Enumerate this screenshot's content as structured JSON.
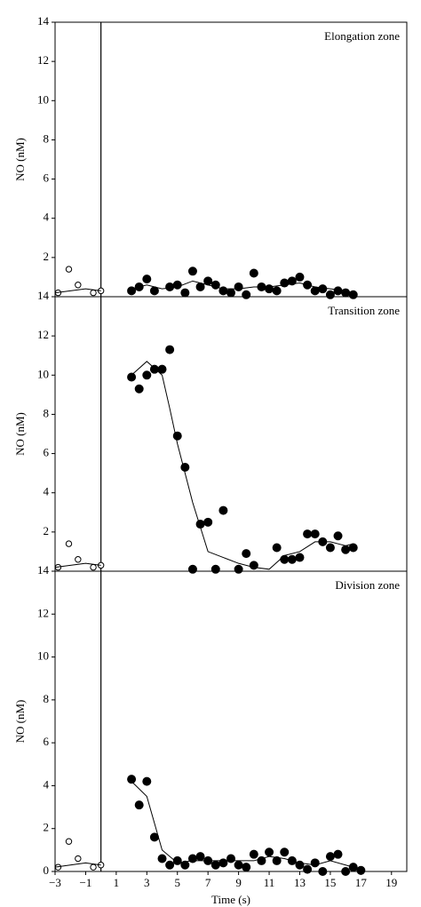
{
  "chart_data": [
    {
      "type": "scatter",
      "title": "Elongation zone",
      "ylabel": "NO (nM)",
      "xlim": [
        -3,
        20
      ],
      "ylim": [
        0,
        14
      ],
      "yticks": [
        2,
        4,
        6,
        8,
        10,
        12,
        14
      ],
      "vlines": [
        0
      ],
      "series": [
        {
          "style": "open",
          "color": "#000000",
          "x": [
            -2.8,
            -2.1,
            -1.5,
            -0.5,
            0
          ],
          "values": [
            0.2,
            1.4,
            0.6,
            0.2,
            0.3
          ]
        },
        {
          "style": "filled",
          "color": "#000000",
          "x": [
            2,
            2.5,
            3,
            3.5,
            4.5,
            5,
            5.5,
            6,
            6.5,
            7,
            7.5,
            8,
            8.5,
            9,
            9.5,
            10,
            10.5,
            11,
            11.5,
            12,
            12.5,
            13,
            13.5,
            14,
            14.5,
            15,
            15.5,
            16,
            16.5
          ],
          "values": [
            0.3,
            0.5,
            0.9,
            0.3,
            0.5,
            0.6,
            0.2,
            1.3,
            0.5,
            0.8,
            0.6,
            0.3,
            0.2,
            0.5,
            0.1,
            1.2,
            0.5,
            0.4,
            0.3,
            0.7,
            0.8,
            1.0,
            0.6,
            0.3,
            0.4,
            0.1,
            0.3,
            0.2,
            0.1
          ]
        },
        {
          "style": "line",
          "color": "#000000",
          "x": [
            -3,
            -2,
            -1,
            0
          ],
          "values": [
            0.2,
            0.3,
            0.4,
            0.3
          ]
        },
        {
          "style": "line",
          "color": "#000000",
          "x": [
            2,
            3,
            4,
            5,
            6,
            7,
            8,
            9,
            10,
            11,
            12,
            13,
            14,
            15,
            16,
            16.5
          ],
          "values": [
            0.4,
            0.6,
            0.4,
            0.5,
            0.8,
            0.6,
            0.4,
            0.4,
            0.5,
            0.5,
            0.6,
            0.7,
            0.5,
            0.4,
            0.3,
            0.2
          ]
        }
      ]
    },
    {
      "type": "scatter",
      "title": "Transition zone",
      "ylabel": "NO (nM)",
      "xlim": [
        -3,
        20
      ],
      "ylim": [
        0,
        14
      ],
      "yticks": [
        2,
        4,
        6,
        8,
        10,
        12,
        14
      ],
      "vlines": [
        0
      ],
      "series": [
        {
          "style": "open",
          "color": "#000000",
          "x": [
            -2.8,
            -2.1,
            -1.5,
            -0.5,
            0
          ],
          "values": [
            0.2,
            1.4,
            0.6,
            0.2,
            0.3
          ]
        },
        {
          "style": "filled",
          "color": "#000000",
          "x": [
            2,
            2.5,
            3,
            3.5,
            4,
            4.5,
            5,
            5.5,
            6,
            6.5,
            7,
            7.5,
            8,
            9,
            9.5,
            10,
            11.5,
            12,
            12.5,
            13,
            13.5,
            14,
            14.5,
            15,
            15.5,
            16,
            16.5
          ],
          "values": [
            9.9,
            9.3,
            10.0,
            10.3,
            10.3,
            11.3,
            6.9,
            5.3,
            0.1,
            2.4,
            2.5,
            0.1,
            3.1,
            0.1,
            0.9,
            0.3,
            1.2,
            0.6,
            0.6,
            0.7,
            1.9,
            1.9,
            1.5,
            1.2,
            1.8,
            1.1,
            1.2
          ]
        },
        {
          "style": "line",
          "color": "#000000",
          "x": [
            -3,
            -2,
            -1,
            0
          ],
          "values": [
            0.2,
            0.3,
            0.4,
            0.3
          ]
        },
        {
          "style": "line",
          "color": "#000000",
          "x": [
            2,
            3,
            4,
            4.5,
            5,
            6,
            7,
            8,
            9,
            10,
            11,
            12,
            13,
            14,
            15,
            16,
            16.5
          ],
          "values": [
            10.0,
            10.7,
            10.0,
            8.3,
            6.5,
            3.5,
            1.0,
            0.7,
            0.4,
            0.2,
            0.1,
            0.8,
            1.0,
            1.5,
            1.5,
            1.3,
            1.4
          ]
        }
      ]
    },
    {
      "type": "scatter",
      "title": "Division zone",
      "ylabel": "NO (nM)",
      "xlabel": "Time (s)",
      "xlim": [
        -3,
        20
      ],
      "ylim": [
        0,
        14
      ],
      "yticks": [
        0,
        2,
        4,
        6,
        8,
        10,
        12,
        14
      ],
      "vlines": [
        0
      ],
      "xticks": [
        {
          "value": -3,
          "label": "−3"
        },
        {
          "value": -1,
          "label": "−1"
        },
        1,
        3,
        5,
        7,
        9,
        11,
        13,
        15,
        17,
        19
      ],
      "series": [
        {
          "style": "open",
          "color": "#000000",
          "x": [
            -2.8,
            -2.1,
            -1.5,
            -0.5,
            0
          ],
          "values": [
            0.2,
            1.4,
            0.6,
            0.2,
            0.3
          ]
        },
        {
          "style": "filled",
          "color": "#000000",
          "x": [
            2,
            2.5,
            3,
            3.5,
            4,
            4.5,
            5,
            5.5,
            6,
            6.5,
            7,
            7.5,
            8,
            8.5,
            9,
            9.5,
            10,
            10.5,
            11,
            11.5,
            12,
            12.5,
            13,
            13.5,
            14,
            14.5,
            15,
            15.5,
            16,
            16.5,
            17
          ],
          "values": [
            4.3,
            3.1,
            4.2,
            1.6,
            0.6,
            0.3,
            0.5,
            0.3,
            0.6,
            0.7,
            0.5,
            0.3,
            0.4,
            0.6,
            0.3,
            0.2,
            0.8,
            0.5,
            0.9,
            0.5,
            0.9,
            0.5,
            0.3,
            0.1,
            0.4,
            0.0,
            0.7,
            0.8,
            0.0,
            0.2,
            0.05
          ]
        },
        {
          "style": "line",
          "color": "#000000",
          "x": [
            -3,
            -2,
            -1,
            0
          ],
          "values": [
            0.2,
            0.3,
            0.4,
            0.3
          ]
        },
        {
          "style": "line",
          "color": "#000000",
          "x": [
            2,
            3,
            4,
            5,
            6,
            8,
            10,
            11,
            12,
            13,
            14,
            15,
            16,
            17
          ],
          "values": [
            4.2,
            3.5,
            1.0,
            0.4,
            0.5,
            0.5,
            0.5,
            0.7,
            0.6,
            0.4,
            0.3,
            0.5,
            0.3,
            0.1
          ]
        }
      ]
    }
  ]
}
